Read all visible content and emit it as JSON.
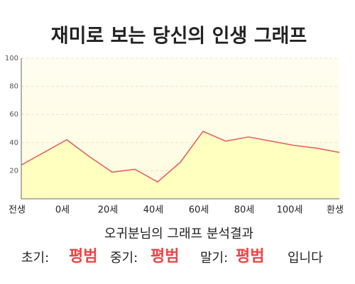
{
  "chart_data": {
    "type": "area",
    "title": "재미로 보는 당신의 인생 그래프",
    "categories": [
      "전생",
      null,
      "0세",
      null,
      "20세",
      null,
      "40세",
      null,
      "60세",
      null,
      "80세",
      null,
      "100세",
      null,
      "환생"
    ],
    "values": [
      24,
      33,
      42,
      30,
      19,
      21,
      12,
      26,
      48,
      41,
      44,
      41,
      38,
      36,
      33
    ],
    "color": "#e06464",
    "fill": "#ffffc0",
    "ylim": [
      0,
      100
    ],
    "yticks": [
      20,
      40,
      60,
      80,
      100
    ],
    "grid": true
  },
  "summary": {
    "heading": "오귀분님의 그래프 분석결과",
    "parts": [
      {
        "label": "초기:",
        "result": "평범"
      },
      {
        "label": "중기:",
        "result": "평범"
      },
      {
        "label": "말기:",
        "result": "평범"
      }
    ],
    "ending": "입니다"
  }
}
